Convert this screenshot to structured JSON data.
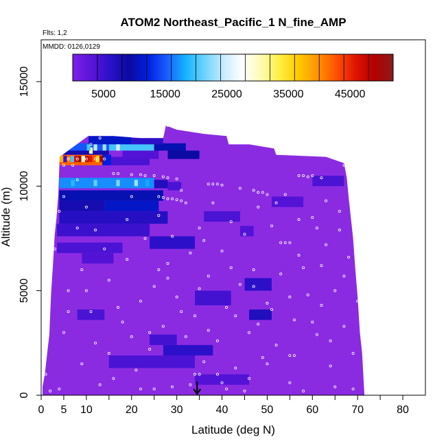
{
  "chart_data": {
    "type": "heatmap",
    "title": "ATOM2 Northeast_Pacific_1 N_fine_AMP",
    "flights_text": "Flts: 1,2",
    "dates_text": "MMDD: 0126,0129",
    "xlabel": "Latitude (deg N)",
    "ylabel": "Altitude (m)",
    "xlim": [
      0,
      85
    ],
    "ylim": [
      0,
      17000
    ],
    "x_ticks": [
      0,
      5,
      10,
      20,
      30,
      40,
      50,
      60,
      70,
      80
    ],
    "x_minor_ticks": [
      15,
      25,
      35,
      45,
      55,
      65,
      75
    ],
    "y_ticks": [
      0,
      5000,
      10000,
      15000
    ],
    "colorbar": {
      "range": [
        0,
        52000
      ],
      "tick_values": [
        5000,
        15000,
        25000,
        35000,
        45000
      ],
      "tick_labels": [
        "5000",
        "15000",
        "25000",
        "35000",
        "45000"
      ],
      "colors": [
        "#7a1fe8",
        "#5a14d8",
        "#2a10c8",
        "#0a0aa0",
        "#0020e0",
        "#1a5cff",
        "#14b4ff",
        "#6fd2ff",
        "#c8ecff",
        "#ffffff",
        "#fffab4",
        "#ffee40",
        "#ffc800",
        "#ff9200",
        "#ff5000",
        "#e01400",
        "#b40000",
        "#8a1c1c"
      ]
    },
    "marker": {
      "x": 34.5,
      "symbol": "down-arrow"
    },
    "grid": false,
    "background_color": "#8a2be2",
    "curtain": [
      {
        "lat": 0.3,
        "top": 400
      },
      {
        "lat": 0.8,
        "top": 1000
      },
      {
        "lat": 1.8,
        "top": 2900
      },
      {
        "lat": 2.2,
        "top": 4900
      },
      {
        "lat": 2.6,
        "top": 6200
      },
      {
        "lat": 3.0,
        "top": 7700
      },
      {
        "lat": 3.4,
        "top": 8500
      },
      {
        "lat": 3.8,
        "top": 9600
      },
      {
        "lat": 4.1,
        "top": 11400
      },
      {
        "lat": 10.4,
        "top": 12400
      },
      {
        "lat": 16.0,
        "top": 12400
      },
      {
        "lat": 22.0,
        "top": 12300
      },
      {
        "lat": 27.0,
        "top": 12300
      },
      {
        "lat": 27.6,
        "top": 12900
      },
      {
        "lat": 30.0,
        "top": 12700
      },
      {
        "lat": 36.0,
        "top": 12500
      },
      {
        "lat": 41.0,
        "top": 12400
      },
      {
        "lat": 41.5,
        "top": 12000
      },
      {
        "lat": 46.0,
        "top": 12000
      },
      {
        "lat": 51.5,
        "top": 11800
      },
      {
        "lat": 52.0,
        "top": 11500
      },
      {
        "lat": 63.0,
        "top": 11400
      },
      {
        "lat": 67.0,
        "top": 11100
      },
      {
        "lat": 67.6,
        "top": 10400
      },
      {
        "lat": 68.0,
        "top": 9500
      },
      {
        "lat": 68.5,
        "top": 8500
      },
      {
        "lat": 69.0,
        "top": 7500
      },
      {
        "lat": 69.5,
        "top": 6000
      },
      {
        "lat": 70.0,
        "top": 4700
      },
      {
        "lat": 70.5,
        "top": 3000
      },
      {
        "lat": 71.0,
        "top": 2000
      },
      {
        "lat": 71.5,
        "top": 0
      }
    ],
    "cells": [
      {
        "x0": 4.2,
        "x1": 13.5,
        "y0": 11000,
        "y1": 11500,
        "value": 42000
      },
      {
        "x0": 13.5,
        "x1": 15.5,
        "y0": 11000,
        "y1": 11500,
        "value": 12000
      },
      {
        "x0": 15.5,
        "x1": 24.0,
        "y0": 11000,
        "y1": 11400,
        "value": 4000
      },
      {
        "x0": 4.2,
        "x1": 15.0,
        "y0": 11500,
        "y1": 11800,
        "value": 8000
      },
      {
        "x0": 5.5,
        "x1": 15.0,
        "y0": 11700,
        "y1": 12050,
        "value": 15000
      },
      {
        "x0": 15.0,
        "x1": 25.0,
        "y0": 11700,
        "y1": 12050,
        "value": 20000
      },
      {
        "x0": 25.0,
        "x1": 32.0,
        "y0": 11700,
        "y1": 12050,
        "value": 10000
      },
      {
        "x0": 10.5,
        "x1": 20.0,
        "y0": 12000,
        "y1": 12400,
        "value": 11000
      },
      {
        "x0": 20.0,
        "x1": 27.0,
        "y0": 12000,
        "y1": 12300,
        "value": 6000
      },
      {
        "x0": 28.0,
        "x1": 35.0,
        "y0": 11300,
        "y1": 11700,
        "value": 9000
      },
      {
        "x0": 18.0,
        "x1": 26.0,
        "y0": 11300,
        "y1": 11700,
        "value": 3500
      },
      {
        "x0": 4.0,
        "x1": 25.0,
        "y0": 9900,
        "y1": 10400,
        "value": 17000
      },
      {
        "x0": 25.0,
        "x1": 28.0,
        "y0": 9900,
        "y1": 10300,
        "value": 7000
      },
      {
        "x0": 28.0,
        "x1": 31.0,
        "y0": 9800,
        "y1": 10200,
        "value": 4000
      },
      {
        "x0": 4.0,
        "x1": 27.0,
        "y0": 9300,
        "y1": 9800,
        "value": 10000
      },
      {
        "x0": 4.0,
        "x1": 14.0,
        "y0": 8800,
        "y1": 9300,
        "value": 8000
      },
      {
        "x0": 14.0,
        "x1": 26.0,
        "y0": 8800,
        "y1": 9300,
        "value": 11000
      },
      {
        "x0": 4.0,
        "x1": 28.0,
        "y0": 8200,
        "y1": 8800,
        "value": 6500
      },
      {
        "x0": 3.5,
        "x1": 24.0,
        "y0": 7600,
        "y1": 8200,
        "value": 5000
      },
      {
        "x0": 24.0,
        "x1": 34.0,
        "y0": 7000,
        "y1": 7600,
        "value": 6000
      },
      {
        "x0": 3.5,
        "x1": 18.0,
        "y0": 6800,
        "y1": 7300,
        "value": 4000
      },
      {
        "x0": 34.0,
        "x1": 42.0,
        "y0": 4300,
        "y1": 5000,
        "value": 4500
      },
      {
        "x0": 45.0,
        "x1": 51.0,
        "y0": 5000,
        "y1": 5600,
        "value": 6000
      },
      {
        "x0": 46.0,
        "x1": 51.0,
        "y0": 3600,
        "y1": 4100,
        "value": 7000
      },
      {
        "x0": 8.0,
        "x1": 14.0,
        "y0": 3600,
        "y1": 4100,
        "value": 4000
      },
      {
        "x0": 24.0,
        "x1": 30.0,
        "y0": 2400,
        "y1": 2900,
        "value": 4500
      },
      {
        "x0": 27.0,
        "x1": 38.0,
        "y0": 1900,
        "y1": 2400,
        "value": 6000
      },
      {
        "x0": 15.0,
        "x1": 34.0,
        "y0": 1300,
        "y1": 1900,
        "value": 4000
      },
      {
        "x0": 34.0,
        "x1": 46.0,
        "y0": 500,
        "y1": 1000,
        "value": 3500
      },
      {
        "x0": 9.0,
        "x1": 16.0,
        "y0": 6300,
        "y1": 6800,
        "value": 3500
      },
      {
        "x0": 51.0,
        "x1": 58.0,
        "y0": 9000,
        "y1": 9500,
        "value": 3500
      },
      {
        "x0": 60.0,
        "x1": 67.0,
        "y0": 10000,
        "y1": 10500,
        "value": 4000
      },
      {
        "x0": 36.0,
        "x1": 44.0,
        "y0": 8300,
        "y1": 8800,
        "value": 4000
      },
      {
        "x0": 44.0,
        "x1": 47.0,
        "y0": 7600,
        "y1": 8100,
        "value": 3500
      }
    ],
    "samples": [
      {
        "lat": 4.5,
        "alt": 11300,
        "value": 38000
      },
      {
        "lat": 5.3,
        "alt": 11300,
        "value": 5000
      },
      {
        "lat": 6.1,
        "alt": 11300,
        "value": 41000
      },
      {
        "lat": 6.9,
        "alt": 11300,
        "value": 20000
      },
      {
        "lat": 7.7,
        "alt": 11300,
        "value": 47000
      },
      {
        "lat": 8.5,
        "alt": 11300,
        "value": 50000
      },
      {
        "lat": 9.3,
        "alt": 11300,
        "value": 30000
      },
      {
        "lat": 10.1,
        "alt": 11300,
        "value": 48000
      },
      {
        "lat": 10.9,
        "alt": 11300,
        "value": 46000
      },
      {
        "lat": 11.7,
        "alt": 11300,
        "value": 43000
      },
      {
        "lat": 12.5,
        "alt": 11300,
        "value": 35000
      },
      {
        "lat": 13.3,
        "alt": 11300,
        "value": 49000
      },
      {
        "lat": 11.0,
        "alt": 11700,
        "value": 31000
      },
      {
        "lat": 10.5,
        "alt": 11850,
        "value": 20000
      },
      {
        "lat": 12.0,
        "alt": 11850,
        "value": 24000
      },
      {
        "lat": 14.0,
        "alt": 11850,
        "value": 23000
      },
      {
        "lat": 17.0,
        "alt": 11850,
        "value": 25000
      },
      {
        "lat": 7.0,
        "alt": 10150,
        "value": 19000
      },
      {
        "lat": 12.0,
        "alt": 10150,
        "value": 21000
      },
      {
        "lat": 17.0,
        "alt": 10150,
        "value": 22000
      },
      {
        "lat": 21.0,
        "alt": 10150,
        "value": 23000
      },
      {
        "lat": 23.5,
        "alt": 10150,
        "value": 18000
      }
    ],
    "track_points": [
      [
        6,
        11300
      ],
      [
        8,
        11300
      ],
      [
        10,
        11300
      ],
      [
        12,
        11300
      ],
      [
        14,
        11300
      ],
      [
        5,
        11000
      ],
      [
        11,
        12000
      ],
      [
        13,
        12300
      ],
      [
        17,
        12500
      ],
      [
        18,
        12450
      ],
      [
        28,
        12900
      ],
      [
        29,
        12850
      ],
      [
        30,
        12800
      ],
      [
        31,
        12750
      ],
      [
        16,
        10600
      ],
      [
        17,
        10600
      ],
      [
        20,
        10550
      ],
      [
        22,
        10550
      ],
      [
        23,
        10500
      ],
      [
        25,
        10500
      ],
      [
        27,
        10450
      ],
      [
        28,
        10400
      ],
      [
        30,
        10350
      ],
      [
        26,
        9500
      ],
      [
        27,
        9450
      ],
      [
        28,
        9400
      ],
      [
        29,
        9400
      ],
      [
        30,
        9350
      ],
      [
        31,
        9300
      ],
      [
        32,
        9200
      ],
      [
        37,
        10100
      ],
      [
        38,
        10100
      ],
      [
        39,
        10100
      ],
      [
        40,
        10050
      ],
      [
        47,
        9800
      ],
      [
        48,
        9700
      ],
      [
        49,
        9700
      ],
      [
        50,
        9600
      ],
      [
        57,
        10500
      ],
      [
        58,
        10500
      ],
      [
        59,
        10450
      ],
      [
        60,
        10500
      ],
      [
        62,
        10400
      ],
      [
        67,
        11000
      ],
      [
        68,
        11000
      ],
      [
        69,
        11000
      ],
      [
        53,
        7300
      ],
      [
        54,
        7300
      ],
      [
        55,
        7300
      ],
      [
        55,
        1900
      ],
      [
        56,
        1900
      ],
      [
        34,
        1000
      ],
      [
        35,
        1000
      ],
      [
        7,
        11000
      ],
      [
        3,
        7000
      ],
      [
        5,
        3000
      ],
      [
        6,
        5000
      ],
      [
        8,
        8000
      ],
      [
        9,
        6000
      ],
      [
        10,
        9000
      ],
      [
        11,
        4000
      ],
      [
        12,
        2500
      ],
      [
        14,
        7000
      ],
      [
        15,
        5500
      ],
      [
        16,
        800
      ],
      [
        18,
        3500
      ],
      [
        19,
        6500
      ],
      [
        20,
        9500
      ],
      [
        21,
        1200
      ],
      [
        22,
        4500
      ],
      [
        23,
        7500
      ],
      [
        24,
        2200
      ],
      [
        25,
        5200
      ],
      [
        26,
        8600
      ],
      [
        27,
        3300
      ],
      [
        28,
        6300
      ],
      [
        29,
        400
      ],
      [
        30,
        4700
      ],
      [
        31,
        9800
      ],
      [
        32,
        2800
      ],
      [
        33,
        6800
      ],
      [
        34,
        3800
      ],
      [
        35,
        8000
      ],
      [
        36,
        1600
      ],
      [
        37,
        5700
      ],
      [
        38,
        9200
      ],
      [
        39,
        2600
      ],
      [
        40,
        6900
      ],
      [
        41,
        4200
      ],
      [
        42,
        8300
      ],
      [
        43,
        1300
      ],
      [
        44,
        5300
      ],
      [
        45,
        7700
      ],
      [
        46,
        3000
      ],
      [
        47,
        6000
      ],
      [
        48,
        9000
      ],
      [
        49,
        1800
      ],
      [
        50,
        4400
      ],
      [
        51,
        8100
      ],
      [
        52,
        2400
      ],
      [
        53,
        5800
      ],
      [
        54,
        9600
      ],
      [
        56,
        3600
      ],
      [
        57,
        6700
      ],
      [
        58,
        200
      ],
      [
        59,
        4800
      ],
      [
        60,
        8500
      ],
      [
        61,
        2900
      ],
      [
        62,
        6200
      ],
      [
        63,
        9300
      ],
      [
        64,
        1400
      ],
      [
        65,
        5000
      ],
      [
        66,
        7900
      ],
      [
        67,
        3300
      ],
      [
        68,
        6600
      ],
      [
        69,
        2000
      ],
      [
        70,
        4500
      ],
      [
        69,
        300
      ],
      [
        2,
        200
      ],
      [
        1,
        1000
      ],
      [
        4,
        300
      ],
      [
        10,
        5000
      ],
      [
        15,
        2000
      ],
      [
        25,
        300
      ],
      [
        45,
        200
      ],
      [
        55,
        600
      ],
      [
        65,
        400
      ],
      [
        40,
        600
      ],
      [
        50,
        1500
      ],
      [
        60,
        3500
      ],
      [
        5,
        9500
      ],
      [
        8,
        10300
      ],
      [
        19,
        8400
      ],
      [
        24,
        3000
      ],
      [
        33,
        500
      ],
      [
        43,
        3800
      ],
      [
        47,
        5200
      ],
      [
        51,
        4100
      ],
      [
        63,
        7200
      ],
      [
        66,
        8800
      ],
      [
        12,
        7900
      ],
      [
        28,
        5600
      ],
      [
        37,
        3100
      ],
      [
        44,
        9900
      ],
      [
        22,
        300
      ],
      [
        36,
        7400
      ],
      [
        46,
        800
      ],
      [
        58,
        6100
      ],
      [
        61,
        8000
      ],
      [
        9,
        1500
      ],
      [
        17,
        4200
      ],
      [
        26,
        6000
      ],
      [
        39,
        1000
      ],
      [
        52,
        9200
      ],
      [
        67,
        5700
      ],
      [
        31,
        4000
      ],
      [
        42,
        6100
      ],
      [
        55,
        4700
      ],
      [
        64,
        2600
      ],
      [
        4,
        8800
      ],
      [
        6,
        4000
      ],
      [
        13,
        500
      ],
      [
        20,
        2800
      ],
      [
        29,
        7600
      ],
      [
        35,
        5100
      ],
      [
        41,
        300
      ],
      [
        48,
        3400
      ],
      [
        57,
        8400
      ],
      [
        62,
        4300
      ]
    ]
  }
}
